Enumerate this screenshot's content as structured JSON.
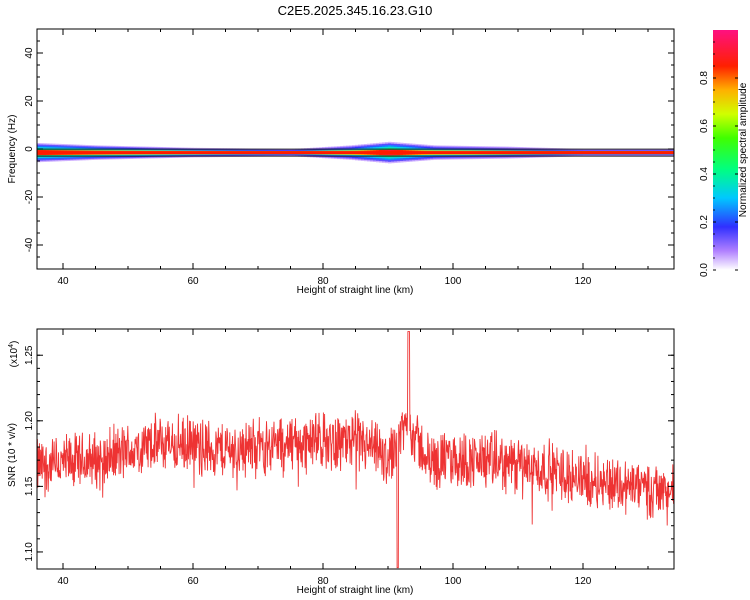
{
  "title": "C2E5.2025.345.16.23.G10",
  "chart_data": [
    {
      "type": "heatmap",
      "xlabel": "Height of straight line (km)",
      "ylabel": "Frequency (Hz)",
      "xlim": [
        36,
        134
      ],
      "ylim": [
        -50,
        50
      ],
      "x_ticks": [
        "40",
        "60",
        "80",
        "100",
        "120"
      ],
      "y_ticks": [
        "40",
        "20",
        "0",
        "-20",
        "-40"
      ],
      "colorbar": {
        "label": "Normalized spectral amplitude",
        "range": [
          0.0,
          1.0
        ],
        "ticks": [
          "0.0",
          "0.2",
          "0.4",
          "0.6",
          "0.8"
        ]
      },
      "band": {
        "center_freq_hz": -1.5,
        "description_points": [
          {
            "x": 36,
            "amp": 0.55,
            "half_width_hz": 3.5
          },
          {
            "x": 45,
            "amp": 0.45,
            "half_width_hz": 2.5
          },
          {
            "x": 60,
            "amp": 0.3,
            "half_width_hz": 1.5
          },
          {
            "x": 75,
            "amp": 0.2,
            "half_width_hz": 1.0
          },
          {
            "x": 84,
            "amp": 0.35,
            "half_width_hz": 2.5
          },
          {
            "x": 90,
            "amp": 0.6,
            "half_width_hz": 4.0
          },
          {
            "x": 97,
            "amp": 0.35,
            "half_width_hz": 2.5
          },
          {
            "x": 108,
            "amp": 0.25,
            "half_width_hz": 2.0
          },
          {
            "x": 120,
            "amp": 0.15,
            "half_width_hz": 1.0
          },
          {
            "x": 134,
            "amp": 0.15,
            "half_width_hz": 1.0
          }
        ]
      }
    },
    {
      "type": "line",
      "xlabel": "Height of straight line (km)",
      "ylabel": "SNR (10 * v/v)",
      "y_multiplier_label": "(x10",
      "y_multiplier_exp": "4",
      "y_multiplier_close": ")",
      "xlim": [
        36,
        134
      ],
      "ylim": [
        1.087,
        1.27
      ],
      "x_ticks": [
        "40",
        "60",
        "80",
        "100",
        "120"
      ],
      "y_ticks": [
        "1.25",
        "1.20",
        "1.15",
        "1.10"
      ],
      "color": "#ee3333",
      "series": [
        {
          "trend": [
            {
              "x": 36,
              "y": 1.165
            },
            {
              "x": 45,
              "y": 1.17
            },
            {
              "x": 55,
              "y": 1.183
            },
            {
              "x": 65,
              "y": 1.178
            },
            {
              "x": 75,
              "y": 1.183
            },
            {
              "x": 85,
              "y": 1.185
            },
            {
              "x": 90,
              "y": 1.17
            },
            {
              "x": 93,
              "y": 1.2
            },
            {
              "x": 96,
              "y": 1.17
            },
            {
              "x": 105,
              "y": 1.17
            },
            {
              "x": 115,
              "y": 1.162
            },
            {
              "x": 125,
              "y": 1.152
            },
            {
              "x": 134,
              "y": 1.145
            }
          ],
          "noise_amplitude": 0.035,
          "spike": {
            "x": 93.2,
            "y": 1.268
          },
          "dip": {
            "x": 91.5,
            "y": 1.088
          }
        }
      ]
    }
  ]
}
